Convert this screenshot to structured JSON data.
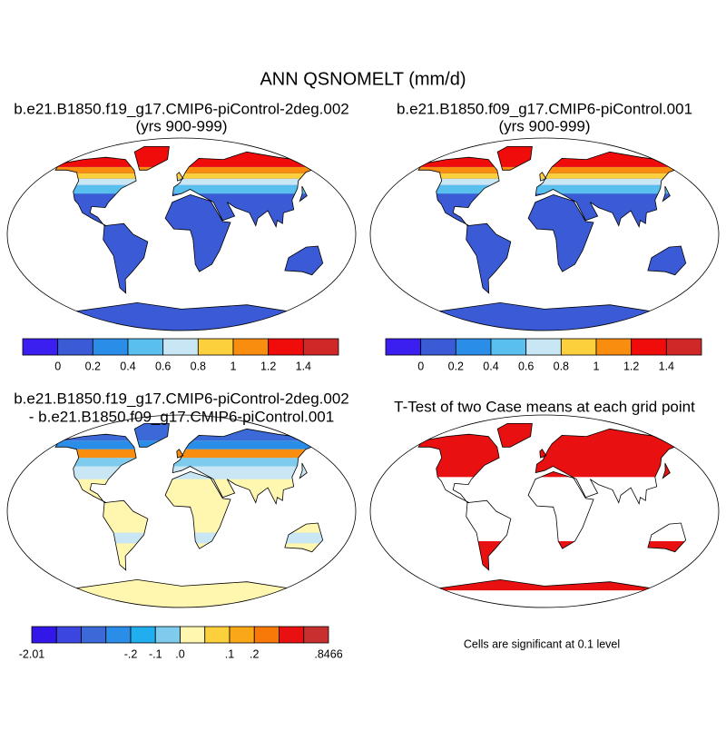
{
  "title": "ANN QSNOMELT (mm/d)",
  "panels": [
    {
      "title_lines": [
        "b.e21.B1850.f19_g17.CMIP6-piControl-2deg.002",
        "(yrs 900-999)"
      ]
    },
    {
      "title_lines": [
        "b.e21.B1850.f09_g17.CMIP6-piControl.001",
        "(yrs 900-999)"
      ]
    },
    {
      "title_lines": [
        "b.e21.B1850.f19_g17.CMIP6-piControl-2deg.002",
        "- b.e21.B1850.f09_g17.CMIP6-piControl.001"
      ]
    },
    {
      "title_lines": [
        "T-Test of two Case means at each grid point"
      ]
    }
  ],
  "colorbars": [
    {
      "colors": [
        "#3a1ff0",
        "#3b5bd6",
        "#2a8ee8",
        "#58bfee",
        "#c8e6f4",
        "#fcd03c",
        "#f98d10",
        "#f10c0c",
        "#d02828"
      ],
      "labels": [
        null,
        "0",
        "0.2",
        "0.4",
        "0.6",
        "0.8",
        "1",
        "1.2",
        "1.4",
        null
      ]
    },
    {
      "colors": [
        "#3a1ff0",
        "#3b5bd6",
        "#2a8ee8",
        "#58bfee",
        "#c8e6f4",
        "#fcd03c",
        "#f98d10",
        "#f10c0c",
        "#d02828"
      ],
      "labels": [
        null,
        "0",
        "0.2",
        "0.4",
        "0.6",
        "0.8",
        "1",
        "1.2",
        "1.4",
        null
      ]
    },
    {
      "colors": [
        "#3217e8",
        "#3b45e0",
        "#3b6ad8",
        "#2a8ee8",
        "#20aeee",
        "#7fcbee",
        "#fff6b0",
        "#fcd03c",
        "#faa818",
        "#f87808",
        "#e81010",
        "#c83030"
      ],
      "labels": [
        "-2.01",
        null,
        null,
        null,
        "-.2",
        "-.1",
        ".0",
        null,
        ".1",
        ".2",
        null,
        null,
        ".8466"
      ]
    }
  ],
  "note": "Cells are significant at 0.1 level"
}
